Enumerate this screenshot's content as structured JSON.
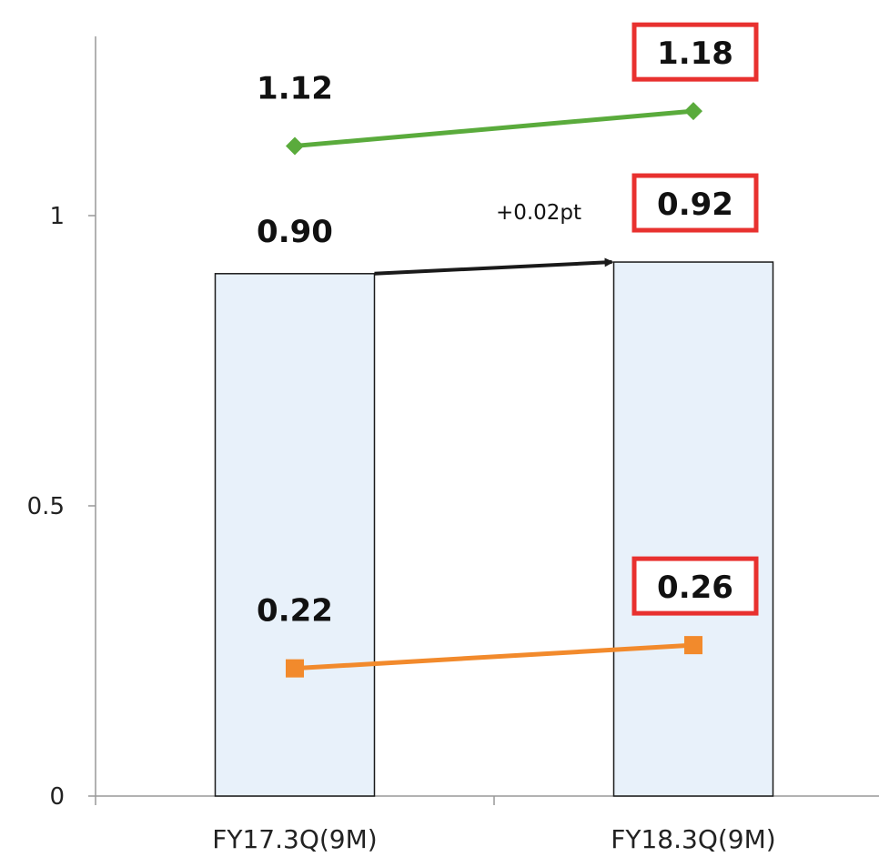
{
  "chart_data": {
    "type": "bar",
    "categories": [
      "FY17.3Q(9M)",
      "FY18.3Q(9M)"
    ],
    "ylim": [
      0,
      1.35
    ],
    "yticks": [
      "0",
      "0.5",
      "1"
    ],
    "ytick_values": [
      0,
      0.5,
      1
    ],
    "grid": false,
    "series": [
      {
        "type": "bar",
        "values": [
          0.9,
          0.92
        ],
        "labels": [
          "0.90",
          "0.92"
        ],
        "color": "#e8f1fa",
        "stroke": "#1a1a1a"
      },
      {
        "type": "line",
        "marker": "diamond",
        "values": [
          1.12,
          1.18
        ],
        "labels": [
          "1.12",
          "1.18"
        ],
        "color": "#5aab3c"
      },
      {
        "type": "line",
        "marker": "square",
        "values": [
          0.22,
          0.26
        ],
        "labels": [
          "0.22",
          "0.26"
        ],
        "color": "#f28a2c"
      }
    ],
    "annotations": [
      {
        "text": "+0.02pt",
        "from_value": 0.9,
        "to_value": 0.92,
        "color": "#1a1a1a"
      }
    ],
    "highlight_box_color": "#e8312f"
  }
}
